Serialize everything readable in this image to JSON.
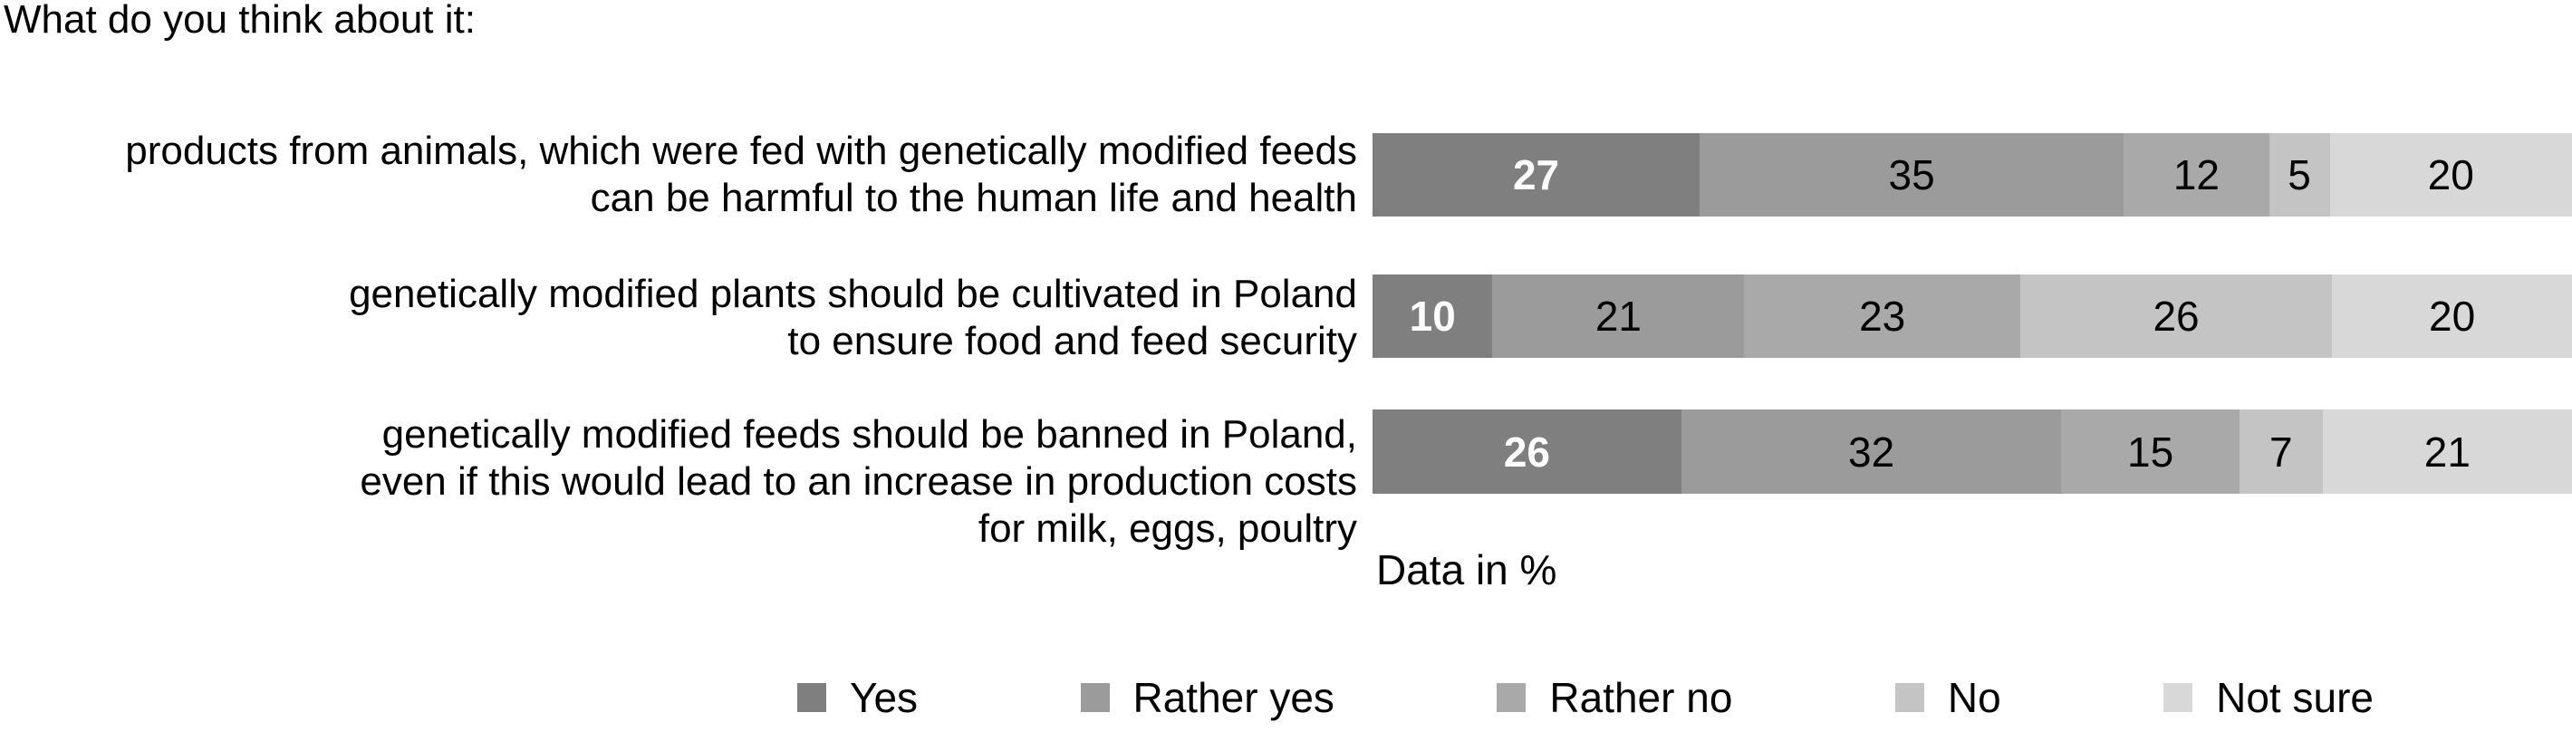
{
  "title": "What do you think about it:",
  "chart_data": {
    "type": "bar",
    "variant": "100% stacked horizontal bar",
    "title": "What do you think about it:",
    "note": "Data in %",
    "xlim": [
      0,
      100
    ],
    "grid": false,
    "legend": {
      "position": "bottom",
      "entries": [
        "Yes",
        "Rather yes",
        "Rather no",
        "No",
        "Not sure"
      ]
    },
    "colors": {
      "yes": "#7f7f7f",
      "rather_yes": "#9b9b9b",
      "rather_no": "#a9a9a9",
      "no": "#c4c4c4",
      "not_sure": "#d8d8d8"
    },
    "value_label_colors": {
      "first_segment": "#ffffff",
      "other_segments": "#000000"
    },
    "categories": [
      {
        "label_lines": [
          "products from animals, which were fed with genetically modified feeds",
          "can be harmful to the human life and health"
        ],
        "values": [
          27,
          35,
          12,
          5,
          20
        ]
      },
      {
        "label_lines": [
          "genetically modified plants should be cultivated in Poland",
          "to ensure food and feed security"
        ],
        "values": [
          10,
          21,
          23,
          26,
          20
        ]
      },
      {
        "label_lines": [
          "genetically modified feeds should be banned in Poland,",
          "even if this would lead to an increase in production costs",
          "for milk, eggs, poultry"
        ],
        "values": [
          26,
          32,
          15,
          7,
          21
        ]
      }
    ],
    "series": [
      {
        "name": "Yes",
        "color": "#7f7f7f",
        "values": [
          27,
          10,
          26
        ]
      },
      {
        "name": "Rather yes",
        "color": "#9b9b9b",
        "values": [
          35,
          21,
          32
        ]
      },
      {
        "name": "Rather no",
        "color": "#a9a9a9",
        "values": [
          12,
          23,
          15
        ]
      },
      {
        "name": "No",
        "color": "#c4c4c4",
        "values": [
          5,
          26,
          7
        ]
      },
      {
        "name": "Not sure",
        "color": "#d8d8d8",
        "values": [
          20,
          20,
          21
        ]
      }
    ]
  }
}
